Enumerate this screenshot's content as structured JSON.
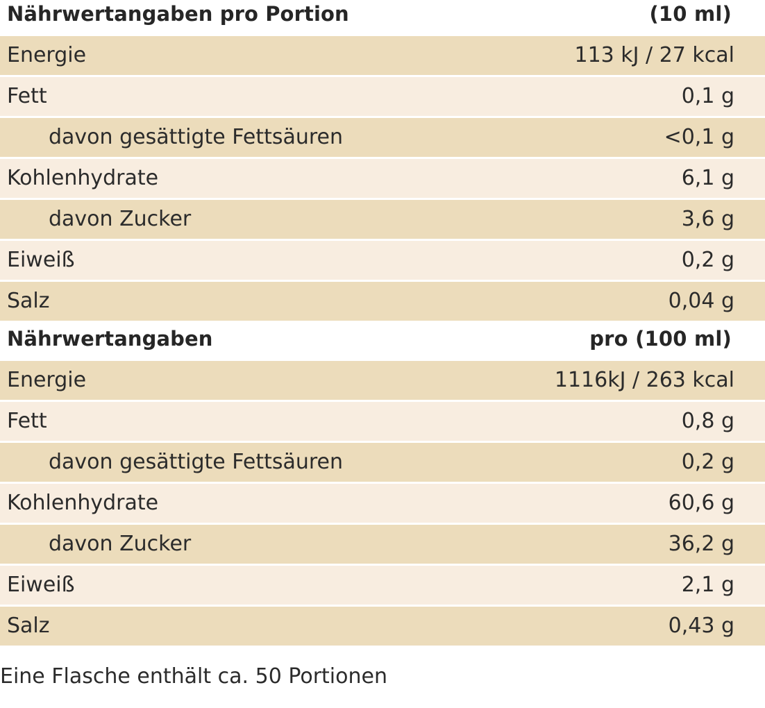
{
  "portion": {
    "title": "Nährwertangaben pro Portion",
    "unit": "(10 ml)",
    "rows": [
      {
        "label": "Energie",
        "value": "113 kJ / 27 kcal"
      },
      {
        "label": "Fett",
        "value": "0,1 g"
      },
      {
        "label": "davon gesättigte Fettsäuren",
        "value": "<0,1 g"
      },
      {
        "label": "Kohlenhydrate",
        "value": "6,1 g"
      },
      {
        "label": "davon Zucker",
        "value": "3,6 g"
      },
      {
        "label": "Eiweiß",
        "value": "0,2 g"
      },
      {
        "label": "Salz",
        "value": "0,04 g"
      }
    ]
  },
  "per100": {
    "title": "Nährwertangaben",
    "unit": "pro (100 ml)",
    "rows": [
      {
        "label": "Energie",
        "value": "1116kJ / 263 kcal"
      },
      {
        "label": "Fett",
        "value": "0,8 g"
      },
      {
        "label": "davon gesättigte Fettsäuren",
        "value": "0,2 g"
      },
      {
        "label": "Kohlenhydrate",
        "value": "60,6 g"
      },
      {
        "label": "davon Zucker",
        "value": "36,2 g"
      },
      {
        "label": "Eiweiß",
        "value": "2,1 g"
      },
      {
        "label": "Salz",
        "value": "0,43 g"
      }
    ]
  },
  "footer": "Eine Flasche enthält ca. 50 Portionen",
  "colors": {
    "row_dark": "#ecdcbb",
    "row_light": "#f8ede0",
    "text": "#2b2b2b"
  }
}
